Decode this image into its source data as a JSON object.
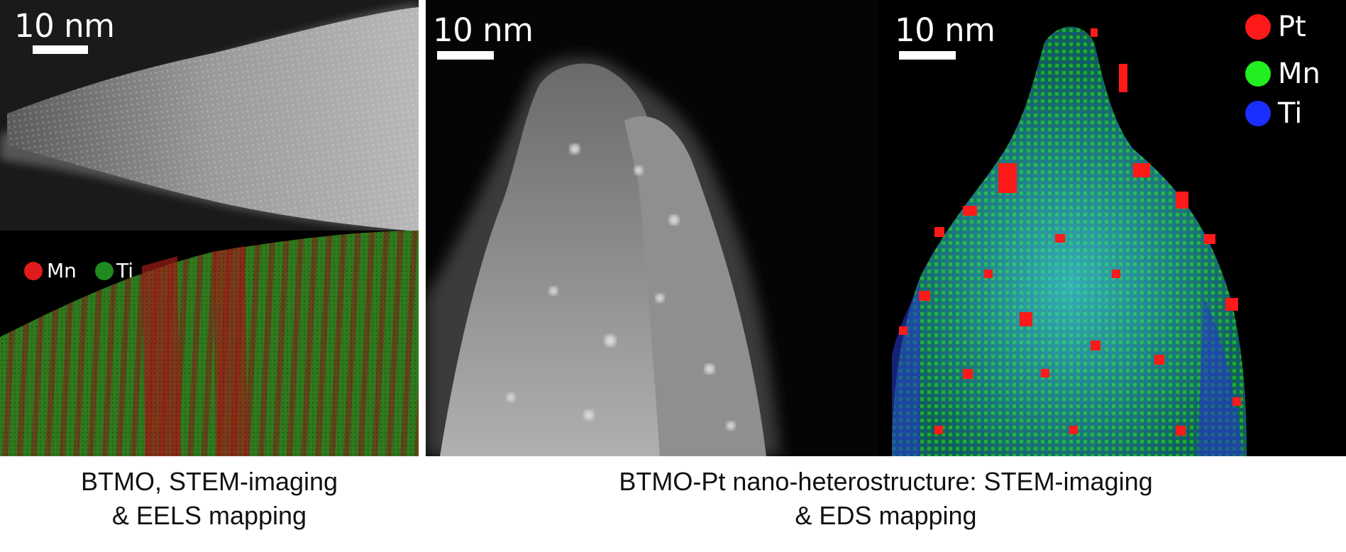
{
  "panels": {
    "stem_left": {
      "scale_label": "10 nm"
    },
    "eels_map": {
      "legend": [
        {
          "label": "Mn",
          "color": "#e11b1b"
        },
        {
          "label": "Ti",
          "color": "#1f8a1f"
        }
      ]
    },
    "stem_middle": {
      "scale_label": "10 nm"
    },
    "eds_map": {
      "scale_label": "10 nm",
      "legend": [
        {
          "label": "Pt",
          "color": "#ff1a1a"
        },
        {
          "label": "Mn",
          "color": "#22ee22"
        },
        {
          "label": "Ti",
          "color": "#1a2eff"
        }
      ]
    }
  },
  "captions": {
    "left": {
      "line1": "BTMO, STEM-imaging",
      "line2": "& EELS mapping"
    },
    "right": {
      "line1": "BTMO-Pt nano-heterostructure: STEM-imaging",
      "line2": "& EDS mapping"
    }
  }
}
